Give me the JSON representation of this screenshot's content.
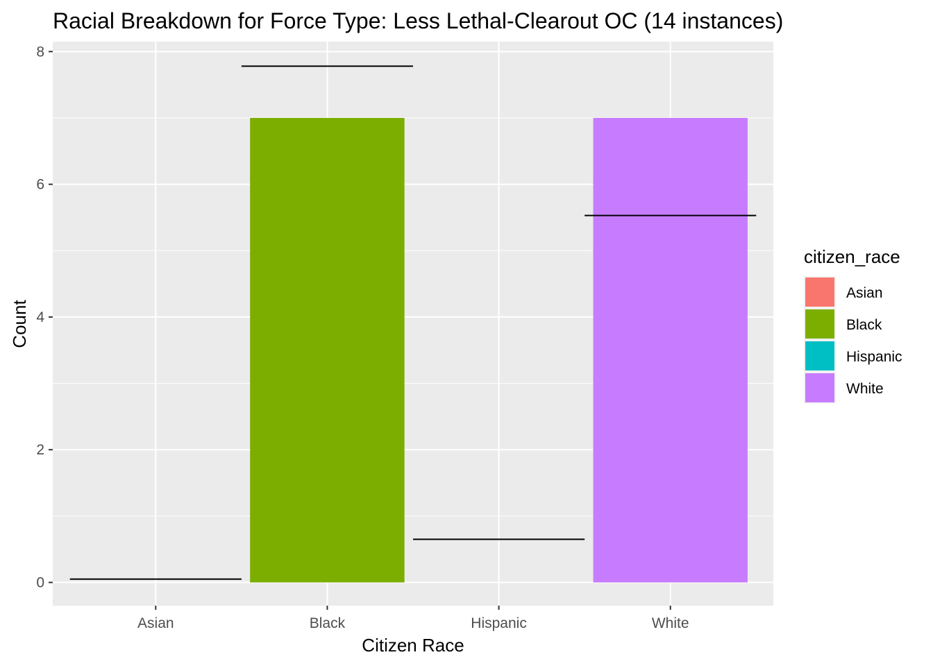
{
  "chart_data": {
    "type": "bar",
    "title": "Racial Breakdown for Force Type: Less Lethal-Clearout OC (14 instances)",
    "xlabel": "Citizen Race",
    "ylabel": "Count",
    "categories": [
      "Asian",
      "Black",
      "Hispanic",
      "White"
    ],
    "values": [
      0,
      7,
      0,
      7
    ],
    "bar_colors": [
      "#F8766D",
      "#7CAE00",
      "#00BFC4",
      "#C77CFF"
    ],
    "reference_values": [
      0.05,
      7.78,
      0.65,
      5.53
    ],
    "reference_color": "#000000",
    "ylim": [
      -0.35,
      8.15
    ],
    "yticks": [
      0,
      2,
      4,
      6,
      8
    ],
    "ytick_labels": [
      "0",
      "2",
      "4",
      "6",
      "8"
    ],
    "grid": true,
    "panel_background": "#EBEBEB",
    "grid_color": "#FFFFFF",
    "legend": {
      "title": "citizen_race",
      "placement": "right",
      "entries": [
        "Asian",
        "Black",
        "Hispanic",
        "White"
      ]
    }
  }
}
